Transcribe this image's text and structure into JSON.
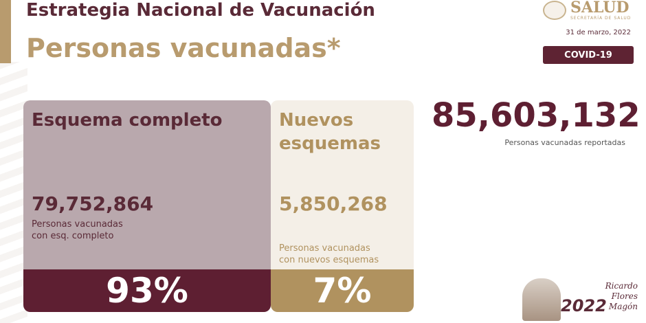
{
  "header": {
    "title": "Estrategia Nacional de Vacunación",
    "subtitle": "Personas vacunadas*"
  },
  "brand": {
    "name": "SALUD",
    "secretaria": "SECRETARÍA DE SALUD",
    "date": "31 de marzo, 2022",
    "badge": "COVID-19"
  },
  "cards": {
    "complete": {
      "heading": "Esquema completo",
      "number": "79,752,864",
      "description": "Personas vacunadas\ncon esq. completo",
      "percent": "93%"
    },
    "new": {
      "heading": "Nuevos esquemas",
      "number": "5,850,268",
      "description": "Personas vacunadas\ncon nuevos esquemas",
      "percent": "7%"
    }
  },
  "total": {
    "number": "85,603,132",
    "label": "Personas vacunadas reportadas"
  },
  "footer_logo": {
    "year": "2022",
    "name": "Ricardo\nFlores\nMagón"
  },
  "colors": {
    "primary": "#5e1f32",
    "gold": "#b89b6e",
    "card_left": "#b9a8ad",
    "card_right": "#f4efe7"
  }
}
